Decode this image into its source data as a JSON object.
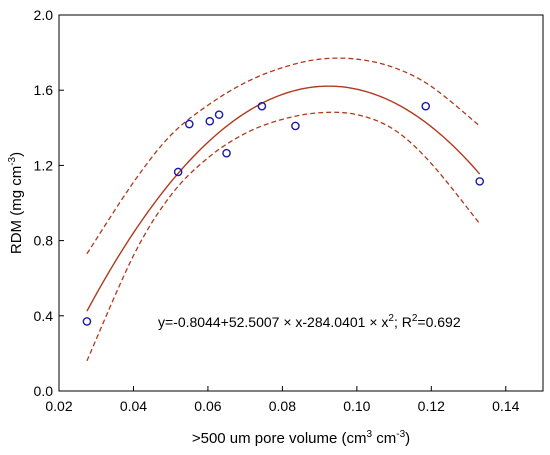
{
  "chart_data": {
    "type": "scatter",
    "title": "",
    "xlabel": {
      "pre": ">500 um pore volume (cm",
      "sup1": "3",
      "mid": " cm",
      "sup2": "-3",
      "post": ")"
    },
    "ylabel": {
      "pre": "RDM (mg cm",
      "sup": "-3",
      "post": ")"
    },
    "xlim": [
      0.02,
      0.15
    ],
    "ylim": [
      0.0,
      2.0
    ],
    "xticks": [
      "0.02",
      "0.04",
      "0.06",
      "0.08",
      "0.10",
      "0.12",
      "0.14"
    ],
    "yticks": [
      "0.0",
      "0.4",
      "0.8",
      "1.2",
      "1.6",
      "2.0"
    ],
    "points": [
      {
        "x": 0.0275,
        "y": 0.37
      },
      {
        "x": 0.052,
        "y": 1.165
      },
      {
        "x": 0.055,
        "y": 1.42
      },
      {
        "x": 0.0605,
        "y": 1.435
      },
      {
        "x": 0.063,
        "y": 1.47
      },
      {
        "x": 0.065,
        "y": 1.265
      },
      {
        "x": 0.0745,
        "y": 1.515
      },
      {
        "x": 0.0835,
        "y": 1.41
      },
      {
        "x": 0.1185,
        "y": 1.515
      },
      {
        "x": 0.133,
        "y": 1.115
      }
    ],
    "fit": {
      "a": -0.8044,
      "b": 52.5007,
      "c": -284.0401,
      "x_range": [
        0.0275,
        0.133
      ],
      "color": "#b03a1e"
    },
    "confidence_band": {
      "color": "#b03a1e",
      "upper": [
        [
          0.0275,
          0.73
        ],
        [
          0.04,
          1.11
        ],
        [
          0.05,
          1.36
        ],
        [
          0.06,
          1.52
        ],
        [
          0.07,
          1.64
        ],
        [
          0.08,
          1.72
        ],
        [
          0.09,
          1.765
        ],
        [
          0.1,
          1.765
        ],
        [
          0.11,
          1.72
        ],
        [
          0.12,
          1.62
        ],
        [
          0.133,
          1.41
        ]
      ],
      "lower": [
        [
          0.0275,
          0.16
        ],
        [
          0.04,
          0.72
        ],
        [
          0.05,
          1.04
        ],
        [
          0.06,
          1.24
        ],
        [
          0.07,
          1.37
        ],
        [
          0.08,
          1.445
        ],
        [
          0.09,
          1.48
        ],
        [
          0.1,
          1.47
        ],
        [
          0.11,
          1.39
        ],
        [
          0.12,
          1.21
        ],
        [
          0.133,
          0.89
        ]
      ]
    },
    "marker_color": "#1a1aa6",
    "equation": {
      "pre": "y=-0.8044+52.5007 × x-284.0401 × x",
      "sup": "2",
      "post": "; R",
      "sup2": "2",
      "post2": "=0.692"
    },
    "grid": false,
    "legend": "none"
  }
}
